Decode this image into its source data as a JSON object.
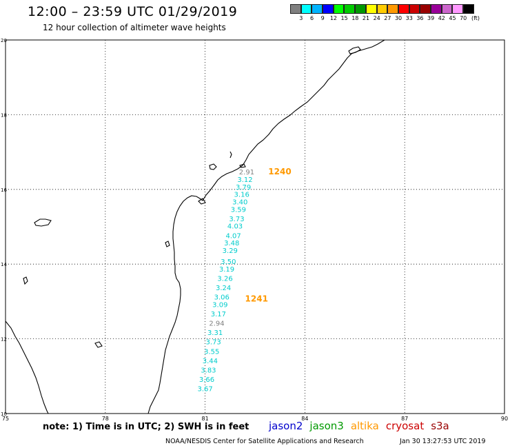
{
  "header": {
    "title": "12:00 – 23:59 UTC 01/29/2019",
    "subtitle": "12 hour collection of altimeter wave heights"
  },
  "legend": {
    "colors": [
      "#808080",
      "#00ffff",
      "#00b4ff",
      "#0000ff",
      "#00ff00",
      "#00cc00",
      "#009900",
      "#ffff00",
      "#ffcc00",
      "#ff9900",
      "#ff0000",
      "#cc0000",
      "#990000",
      "#990099",
      "#cc66cc",
      "#ff99ff",
      "#000000"
    ],
    "labels": [
      "3",
      "6",
      "9",
      "12",
      "15",
      "18",
      "21",
      "24",
      "27",
      "30",
      "33",
      "36",
      "39",
      "42",
      "45",
      "70"
    ],
    "unit": "(ft)"
  },
  "axes": {
    "x_ticks": [
      "75",
      "78",
      "81",
      "84",
      "87",
      "90"
    ],
    "y_ticks": [
      "20",
      "18",
      "16",
      "14",
      "12",
      "10"
    ],
    "x_range": [
      75,
      90
    ],
    "y_range": [
      10,
      20
    ]
  },
  "passes": [
    {
      "label": "1240",
      "lon": 82.9,
      "lat": 16.4,
      "color": "#ff9900"
    },
    {
      "label": "1241",
      "lon": 82.2,
      "lat": 13.0,
      "color": "#ff9900"
    }
  ],
  "wave_heights": [
    {
      "value": "2.91",
      "lon": 82.25,
      "lat": 16.4,
      "color": "#808080"
    },
    {
      "value": "3.12",
      "lon": 82.2,
      "lat": 16.2,
      "color": "#00cccc"
    },
    {
      "value": "3.79",
      "lon": 82.15,
      "lat": 16.0,
      "color": "#00cccc"
    },
    {
      "value": "3.16",
      "lon": 82.1,
      "lat": 15.8,
      "color": "#00cccc"
    },
    {
      "value": "3.40",
      "lon": 82.05,
      "lat": 15.6,
      "color": "#00cccc"
    },
    {
      "value": "3.59",
      "lon": 82.0,
      "lat": 15.4,
      "color": "#00cccc"
    },
    {
      "value": "3.73",
      "lon": 81.95,
      "lat": 15.15,
      "color": "#00cccc"
    },
    {
      "value": "4.03",
      "lon": 81.9,
      "lat": 14.95,
      "color": "#00cccc"
    },
    {
      "value": "4.07",
      "lon": 81.85,
      "lat": 14.7,
      "color": "#00cccc"
    },
    {
      "value": "3.48",
      "lon": 81.8,
      "lat": 14.5,
      "color": "#00cccc"
    },
    {
      "value": "3.29",
      "lon": 81.75,
      "lat": 14.3,
      "color": "#00cccc"
    },
    {
      "value": "3.50",
      "lon": 81.7,
      "lat": 14.0,
      "color": "#00cccc"
    },
    {
      "value": "3.19",
      "lon": 81.65,
      "lat": 13.8,
      "color": "#00cccc"
    },
    {
      "value": "3.26",
      "lon": 81.6,
      "lat": 13.55,
      "color": "#00cccc"
    },
    {
      "value": "3.24",
      "lon": 81.55,
      "lat": 13.3,
      "color": "#00cccc"
    },
    {
      "value": "3.06",
      "lon": 81.5,
      "lat": 13.05,
      "color": "#00cccc"
    },
    {
      "value": "3.09",
      "lon": 81.45,
      "lat": 12.85,
      "color": "#00cccc"
    },
    {
      "value": "3.17",
      "lon": 81.4,
      "lat": 12.6,
      "color": "#00cccc"
    },
    {
      "value": "2.94",
      "lon": 81.35,
      "lat": 12.35,
      "color": "#808080"
    },
    {
      "value": "3.31",
      "lon": 81.3,
      "lat": 12.1,
      "color": "#00cccc"
    },
    {
      "value": "3.73",
      "lon": 81.25,
      "lat": 11.85,
      "color": "#00cccc"
    },
    {
      "value": "3.55",
      "lon": 81.2,
      "lat": 11.6,
      "color": "#00cccc"
    },
    {
      "value": "3.44",
      "lon": 81.15,
      "lat": 11.35,
      "color": "#00cccc"
    },
    {
      "value": "3.83",
      "lon": 81.1,
      "lat": 11.1,
      "color": "#00cccc"
    },
    {
      "value": "3.66",
      "lon": 81.05,
      "lat": 10.85,
      "color": "#00cccc"
    },
    {
      "value": "3.67",
      "lon": 81.0,
      "lat": 10.6,
      "color": "#00cccc"
    }
  ],
  "footer": {
    "note": "note: 1) Time is in UTC; 2) SWH is in feet",
    "credit": "NOAA/NESDIS Center for Satellite Applications and Research",
    "timestamp": "Jan 30 13:27:53 UTC 2019"
  },
  "satellites": [
    {
      "name": "jason2",
      "color": "#0000cc"
    },
    {
      "name": "jason3",
      "color": "#009900"
    },
    {
      "name": "altika",
      "color": "#ff9900"
    },
    {
      "name": "cryosat",
      "color": "#cc0000"
    },
    {
      "name": "s3a",
      "color": "#990000"
    }
  ]
}
